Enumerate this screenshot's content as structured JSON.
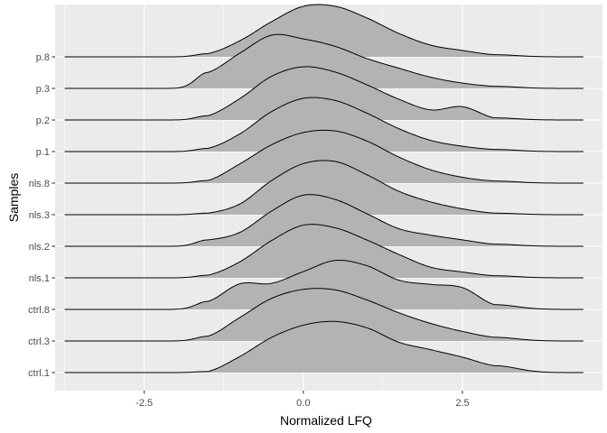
{
  "chart_data": {
    "type": "ridgeline",
    "title": "",
    "xlabel": "Normalized LFQ",
    "ylabel": "Samples",
    "xlim": [
      -3.9,
      4.7
    ],
    "x_ticks": [
      -2.5,
      0.0,
      2.5
    ],
    "x_tick_labels": [
      "-2.5",
      "0.0",
      "2.5"
    ],
    "grid": true,
    "fill_color": "#b3b3b3",
    "panel_color": "#ebebeb",
    "grid_color": "#ffffff",
    "line_color": "#000000",
    "line_extent": [
      -3.75,
      4.4
    ],
    "x_grid": [
      -1.5,
      -1.0,
      -0.5,
      0.0,
      0.5,
      1.0,
      1.5,
      2.0,
      2.5,
      3.0
    ],
    "series": [
      {
        "name": "ctrl.1",
        "values": [
          0.02,
          0.3,
          0.66,
          0.89,
          0.96,
          0.84,
          0.57,
          0.43,
          0.29,
          0.13
        ]
      },
      {
        "name": "ctrl.3",
        "values": [
          0.09,
          0.44,
          0.8,
          0.97,
          0.96,
          0.77,
          0.53,
          0.33,
          0.18,
          0.07
        ]
      },
      {
        "name": "ctrl.8",
        "values": [
          0.15,
          0.48,
          0.49,
          0.71,
          0.92,
          0.82,
          0.55,
          0.47,
          0.41,
          0.09
        ]
      },
      {
        "name": "nls.1",
        "values": [
          0.05,
          0.3,
          0.7,
          0.99,
          0.94,
          0.71,
          0.44,
          0.2,
          0.11,
          0.04
        ]
      },
      {
        "name": "nls.2",
        "values": [
          0.12,
          0.26,
          0.66,
          0.96,
          0.88,
          0.61,
          0.33,
          0.21,
          0.12,
          0.04
        ]
      },
      {
        "name": "nls.3",
        "values": [
          0.03,
          0.2,
          0.64,
          0.96,
          1.0,
          0.75,
          0.44,
          0.24,
          0.11,
          0.03
        ]
      },
      {
        "name": "nls.8",
        "values": [
          0.05,
          0.36,
          0.72,
          0.95,
          0.98,
          0.79,
          0.49,
          0.25,
          0.11,
          0.04
        ]
      },
      {
        "name": "p.1",
        "values": [
          0.06,
          0.33,
          0.75,
          1.0,
          0.96,
          0.72,
          0.43,
          0.21,
          0.1,
          0.04
        ]
      },
      {
        "name": "p.2",
        "values": [
          0.08,
          0.4,
          0.82,
          1.0,
          0.9,
          0.66,
          0.39,
          0.19,
          0.25,
          0.04
        ]
      },
      {
        "name": "p.3",
        "values": [
          0.3,
          0.66,
          1.0,
          0.93,
          0.79,
          0.56,
          0.38,
          0.21,
          0.1,
          0.04
        ]
      },
      {
        "name": "p.8",
        "values": [
          0.06,
          0.3,
          0.66,
          0.95,
          0.95,
          0.73,
          0.44,
          0.22,
          0.12,
          0.04
        ]
      }
    ]
  }
}
